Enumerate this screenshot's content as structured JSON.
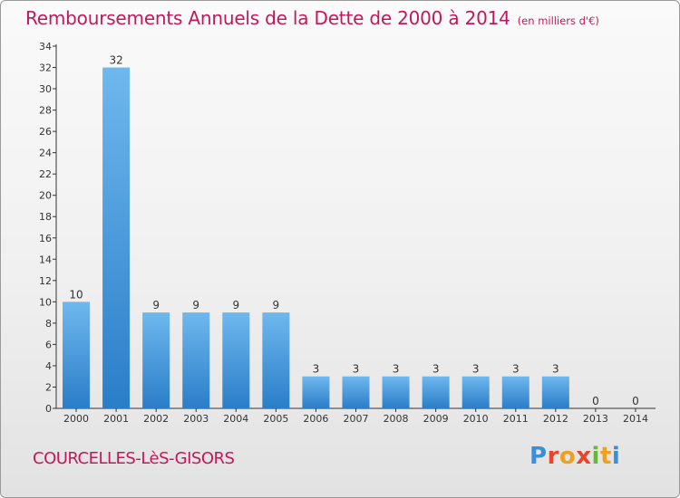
{
  "title": "Remboursements Annuels de la Dette de 2000 à 2014",
  "unit_note": "(en milliers d'€)",
  "commune": "COURCELLES-LèS-GISORS",
  "logo": {
    "text": "Proxiti",
    "letter_colors": [
      "#3a8fd8",
      "#e8452c",
      "#f0a020",
      "#e8452c",
      "#66b83a",
      "#f0a020",
      "#3a8fd8"
    ]
  },
  "colors": {
    "title": "#c2185b",
    "bar_light": "#6fb8ee",
    "bar_dark": "#2a7dc8",
    "axis": "#333333"
  },
  "chart_data": {
    "type": "bar",
    "title": "Remboursements Annuels de la Dette de 2000 à 2014",
    "subtitle": "(en milliers d'€)",
    "xlabel": "",
    "ylabel": "",
    "categories": [
      "2000",
      "2001",
      "2002",
      "2003",
      "2004",
      "2005",
      "2006",
      "2007",
      "2008",
      "2009",
      "2010",
      "2011",
      "2012",
      "2013",
      "2014"
    ],
    "values": [
      10,
      32,
      9,
      9,
      9,
      9,
      3,
      3,
      3,
      3,
      3,
      3,
      3,
      0,
      0
    ],
    "data_labels": [
      "10",
      "32",
      "9",
      "9",
      "9",
      "9",
      "3",
      "3",
      "3",
      "3",
      "3",
      "3",
      "3",
      "0",
      "0"
    ],
    "ylim": [
      0,
      34
    ],
    "yticks": [
      "0",
      "2",
      "4",
      "6",
      "8",
      "10",
      "12",
      "14",
      "16",
      "18",
      "20",
      "22",
      "24",
      "26",
      "28",
      "30",
      "32",
      "34"
    ],
    "grid": false,
    "legend": "none"
  }
}
